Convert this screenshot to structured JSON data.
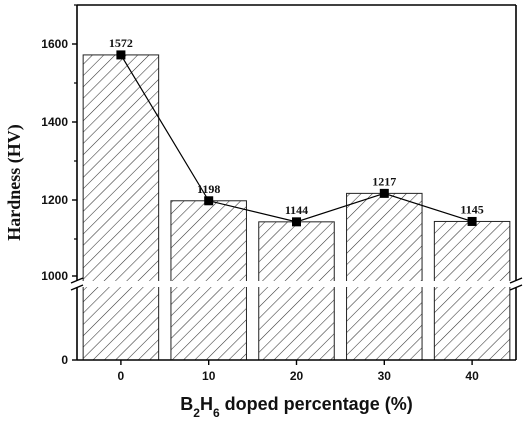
{
  "chart_data": {
    "type": "bar",
    "categories": [
      "0",
      "10",
      "20",
      "30",
      "40"
    ],
    "values": [
      1572,
      1198,
      1144,
      1217,
      1145
    ],
    "data_labels": [
      "1572",
      "1198",
      "1144",
      "1217",
      "1145"
    ],
    "overlay_line": true,
    "xlabel": {
      "parts": [
        {
          "text": "B",
          "sub": false
        },
        {
          "text": "2",
          "sub": true
        },
        {
          "text": "H",
          "sub": false
        },
        {
          "text": "6",
          "sub": true
        },
        {
          "text": " doped percentage (%)",
          "sub": false
        }
      ]
    },
    "ylabel": "Hardness (HV)",
    "y_axis_break": {
      "lower": [
        0,
        1000
      ],
      "upper": [
        1000,
        1700
      ]
    },
    "y_ticks_lower": [
      {
        "value": 0,
        "label": "0"
      },
      {
        "value": 1000,
        "label": "1000"
      }
    ],
    "y_ticks_upper": [
      {
        "value": 1200,
        "label": "1200"
      },
      {
        "value": 1400,
        "label": "1400"
      },
      {
        "value": 1600,
        "label": "1600"
      }
    ],
    "ylim": [
      0,
      1700
    ],
    "bar_pattern": "diagonal-hatch",
    "colors": {
      "bar_fill": "#ffffff",
      "hatch": "#333333",
      "axis": "#000000",
      "marker": "#000000"
    },
    "grid": false
  }
}
